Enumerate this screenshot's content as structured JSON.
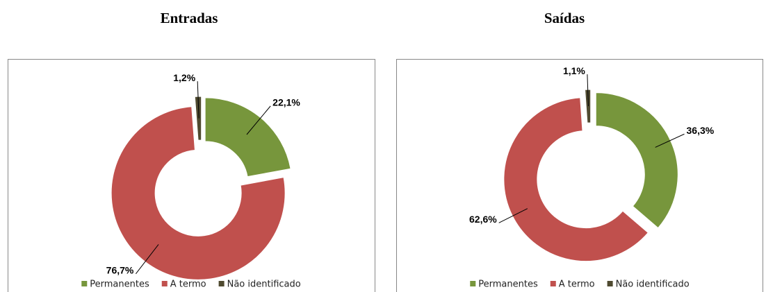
{
  "chart_data": [
    {
      "type": "donut",
      "title": "Entradas",
      "categories": [
        "Permanentes",
        "A termo",
        "Não identificado"
      ],
      "values": [
        22.1,
        76.7,
        1.2
      ],
      "value_labels": [
        "22,1%",
        "76,7%",
        "1,2%"
      ],
      "colors": [
        "#77963c",
        "#c0504d",
        "#4f4a30"
      ],
      "legend": "bottom"
    },
    {
      "type": "donut",
      "title": "Saídas",
      "categories": [
        "Permanentes",
        "A termo",
        "Não identificado"
      ],
      "values": [
        36.3,
        62.6,
        1.1
      ],
      "value_labels": [
        "36,3%",
        "62,6%",
        "1,1%"
      ],
      "colors": [
        "#77963c",
        "#c0504d",
        "#4f4a30"
      ],
      "legend": "bottom"
    }
  ]
}
